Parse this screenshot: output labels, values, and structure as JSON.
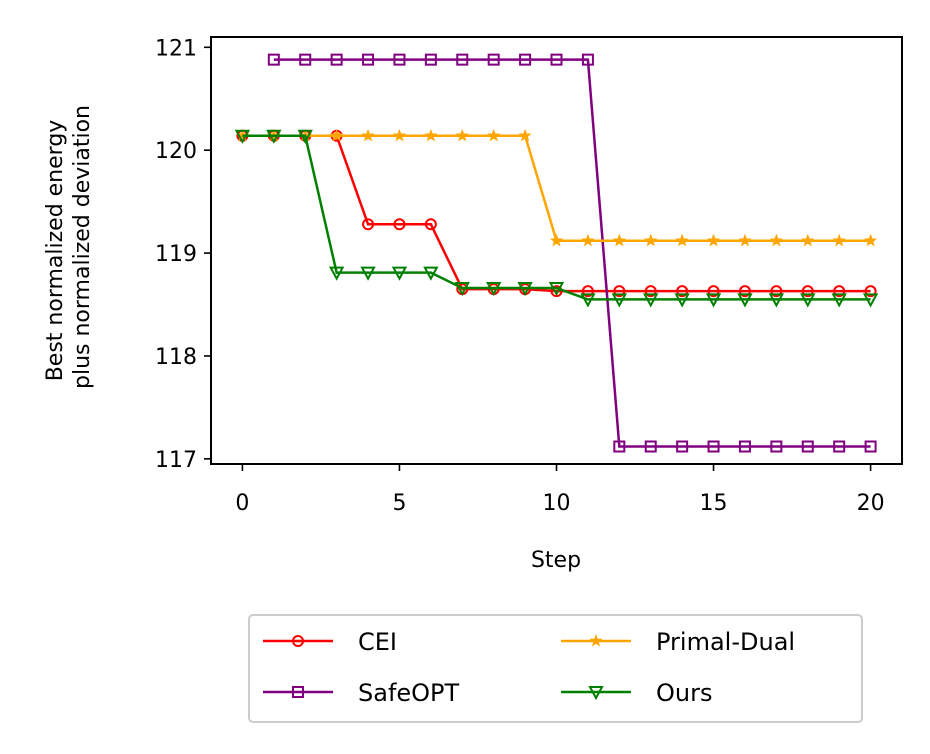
{
  "chart_data": {
    "type": "line",
    "xlabel": "Step",
    "ylabel_lines": [
      "Best normalized energy",
      "plus normalized deviation"
    ],
    "xlim": [
      -1,
      21
    ],
    "ylim": [
      116.95,
      121.1
    ],
    "xticks": [
      0,
      5,
      10,
      15,
      20
    ],
    "yticks": [
      117,
      118,
      119,
      120,
      121
    ],
    "xtick_labels": [
      "0",
      "5",
      "10",
      "15",
      "20"
    ],
    "ytick_labels": [
      "117",
      "118",
      "119",
      "120",
      "121"
    ],
    "grid": false,
    "legend_placement": "bottom-center",
    "series": [
      {
        "name": "CEI",
        "color": "#ff0000",
        "marker": "circle",
        "x": [
          0,
          1,
          2,
          3,
          4,
          5,
          6,
          7,
          8,
          9,
          10,
          11,
          12,
          13,
          14,
          15,
          16,
          17,
          18,
          19,
          20
        ],
        "y": [
          120.14,
          120.14,
          120.14,
          120.14,
          119.28,
          119.28,
          119.28,
          118.65,
          118.65,
          118.65,
          118.63,
          118.63,
          118.63,
          118.63,
          118.63,
          118.63,
          118.63,
          118.63,
          118.63,
          118.63,
          118.63
        ]
      },
      {
        "name": "SafeOPT",
        "color": "#800080",
        "marker": "square",
        "x": [
          1,
          2,
          3,
          4,
          5,
          6,
          7,
          8,
          9,
          10,
          11,
          12,
          13,
          14,
          15,
          16,
          17,
          18,
          19,
          20
        ],
        "y": [
          120.88,
          120.88,
          120.88,
          120.88,
          120.88,
          120.88,
          120.88,
          120.88,
          120.88,
          120.88,
          120.88,
          117.12,
          117.12,
          117.12,
          117.12,
          117.12,
          117.12,
          117.12,
          117.12,
          117.12
        ]
      },
      {
        "name": "Primal-Dual",
        "color": "#ffa500",
        "marker": "star",
        "x": [
          0,
          1,
          2,
          3,
          4,
          5,
          6,
          7,
          8,
          9,
          10,
          11,
          12,
          13,
          14,
          15,
          16,
          17,
          18,
          19,
          20
        ],
        "y": [
          120.14,
          120.14,
          120.14,
          120.14,
          120.14,
          120.14,
          120.14,
          120.14,
          120.14,
          120.14,
          119.12,
          119.12,
          119.12,
          119.12,
          119.12,
          119.12,
          119.12,
          119.12,
          119.12,
          119.12,
          119.12
        ]
      },
      {
        "name": "Ours",
        "color": "#008000",
        "marker": "triangle-down",
        "x": [
          0,
          1,
          2,
          3,
          4,
          5,
          6,
          7,
          8,
          9,
          10,
          11,
          12,
          13,
          14,
          15,
          16,
          17,
          18,
          19,
          20
        ],
        "y": [
          120.14,
          120.14,
          120.14,
          118.81,
          118.81,
          118.81,
          118.81,
          118.66,
          118.66,
          118.66,
          118.66,
          118.55,
          118.55,
          118.55,
          118.55,
          118.55,
          118.55,
          118.55,
          118.55,
          118.55,
          118.55
        ]
      }
    ]
  }
}
